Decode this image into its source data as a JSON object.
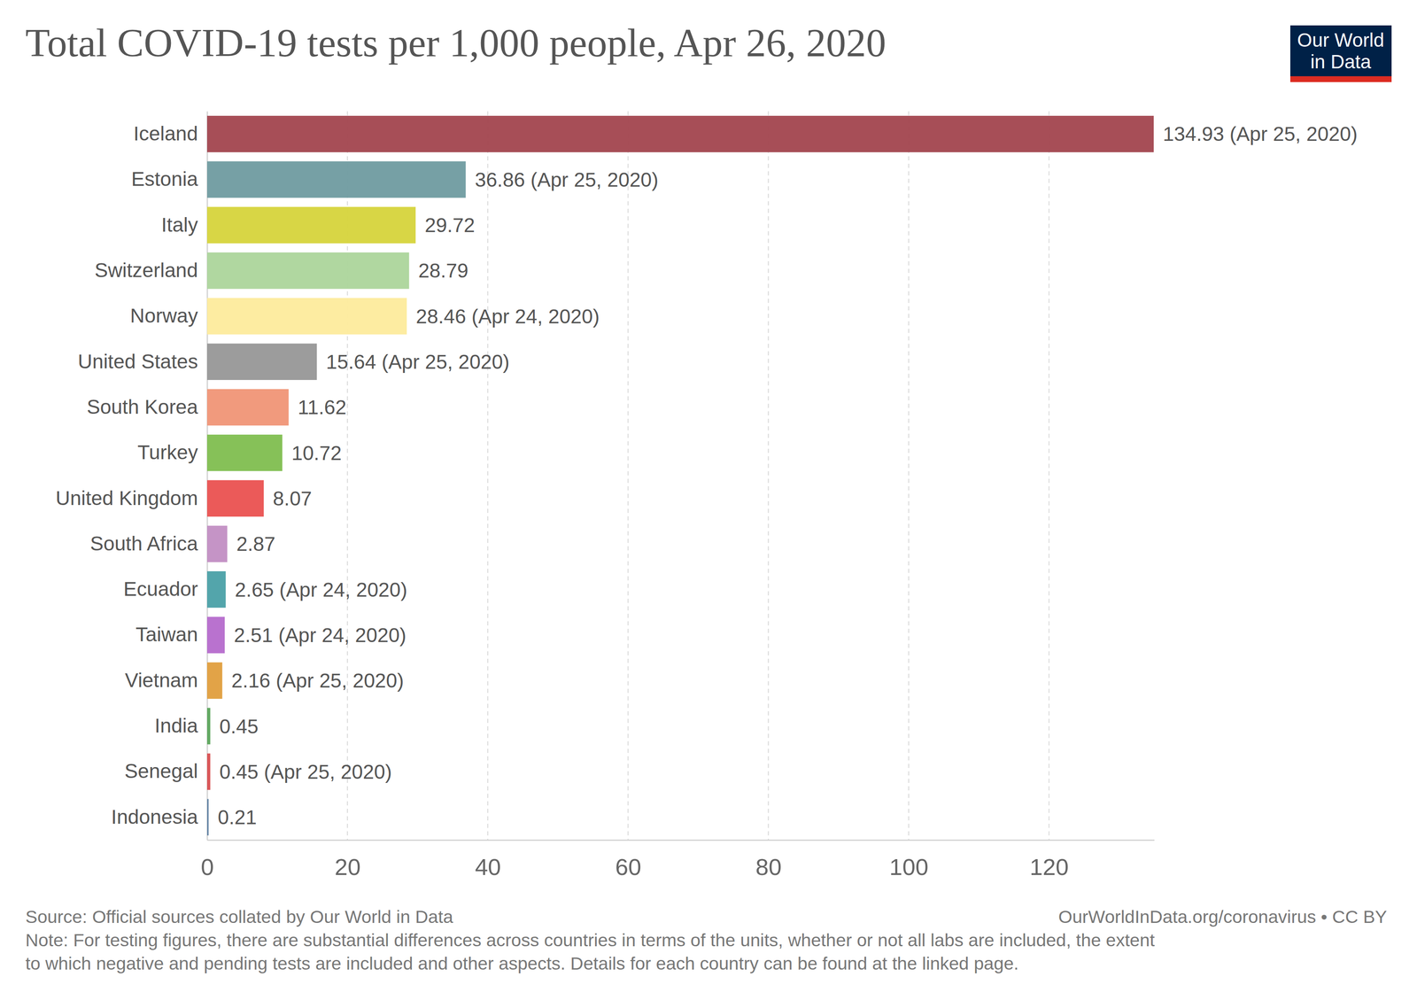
{
  "chart_data": {
    "type": "bar",
    "orientation": "horizontal",
    "title": "Total COVID-19 tests per 1,000 people, Apr 26, 2020",
    "categories": [
      "Iceland",
      "Estonia",
      "Italy",
      "Switzerland",
      "Norway",
      "United States",
      "South Korea",
      "Turkey",
      "United Kingdom",
      "South Africa",
      "Ecuador",
      "Taiwan",
      "Vietnam",
      "India",
      "Senegal",
      "Indonesia"
    ],
    "values": [
      134.93,
      36.86,
      29.72,
      28.79,
      28.46,
      15.64,
      11.62,
      10.72,
      8.07,
      2.87,
      2.65,
      2.51,
      2.16,
      0.45,
      0.45,
      0.21
    ],
    "value_labels": [
      "134.93 (Apr 25, 2020)",
      "36.86 (Apr 25, 2020)",
      "29.72",
      "28.79",
      "28.46 (Apr 24, 2020)",
      "15.64 (Apr 25, 2020)",
      "11.62",
      "10.72",
      "8.07",
      "2.87",
      "2.65 (Apr 24, 2020)",
      "2.51 (Apr 24, 2020)",
      "2.16 (Apr 25, 2020)",
      "0.45",
      "0.45 (Apr 25, 2020)",
      "0.21"
    ],
    "colors": [
      "#a2444e",
      "#6f9ba0",
      "#d6d43b",
      "#acd59b",
      "#fdeb9c",
      "#979797",
      "#f09576",
      "#7fbe4f",
      "#ea5150",
      "#c28ec3",
      "#4aa0a6",
      "#b56acc",
      "#e09e3d",
      "#5aa45a",
      "#d84d4f",
      "#5c7ea1"
    ],
    "xlim": [
      0,
      135
    ],
    "xticks": [
      0,
      20,
      40,
      60,
      80,
      100,
      120
    ],
    "grid": true,
    "data_labels": true,
    "source": "Source: Official sources collated by Our World in Data",
    "credit": "OurWorldInData.org/coronavirus • CC BY",
    "note": [
      "Note: For testing figures, there are substantial differences across countries in terms of the units, whether or not all labs are included, the extent",
      "to which negative and pending tests are included and other aspects. Details for each country can be found at the linked page."
    ],
    "logo": [
      "Our World",
      "in Data"
    ]
  }
}
